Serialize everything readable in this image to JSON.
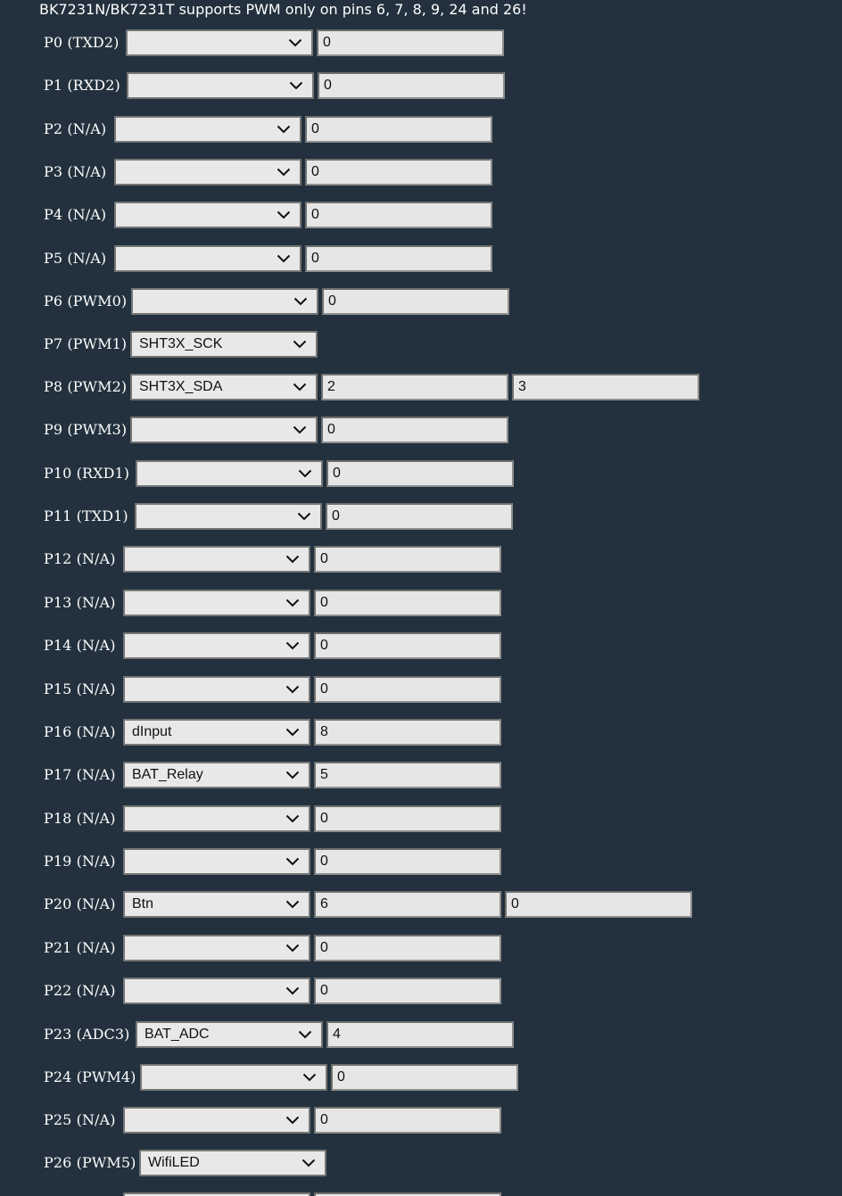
{
  "notice": "BK7231N/BK7231T supports PWM only on pins 6, 7, 8, 9, 24 and 26!",
  "pins": [
    {
      "label": "P0 (TXD2)",
      "role": "",
      "channels": [
        "0"
      ]
    },
    {
      "label": "P1 (RXD2)",
      "role": "",
      "channels": [
        "0"
      ]
    },
    {
      "label": "P2 (N/A)",
      "role": "",
      "channels": [
        "0"
      ]
    },
    {
      "label": "P3 (N/A)",
      "role": "",
      "channels": [
        "0"
      ]
    },
    {
      "label": "P4 (N/A)",
      "role": "",
      "channels": [
        "0"
      ]
    },
    {
      "label": "P5 (N/A)",
      "role": "",
      "channels": [
        "0"
      ]
    },
    {
      "label": "P6 (PWM0)",
      "role": "",
      "channels": [
        "0"
      ]
    },
    {
      "label": "P7 (PWM1)",
      "role": "SHT3X_SCK",
      "channels": []
    },
    {
      "label": "P8 (PWM2)",
      "role": "SHT3X_SDA",
      "channels": [
        "2",
        "3"
      ]
    },
    {
      "label": "P9 (PWM3)",
      "role": "",
      "channels": [
        "0"
      ]
    },
    {
      "label": "P10 (RXD1)",
      "role": "",
      "channels": [
        "0"
      ]
    },
    {
      "label": "P11 (TXD1)",
      "role": "",
      "channels": [
        "0"
      ]
    },
    {
      "label": "P12 (N/A)",
      "role": "",
      "channels": [
        "0"
      ]
    },
    {
      "label": "P13 (N/A)",
      "role": "",
      "channels": [
        "0"
      ]
    },
    {
      "label": "P14 (N/A)",
      "role": "",
      "channels": [
        "0"
      ]
    },
    {
      "label": "P15 (N/A)",
      "role": "",
      "channels": [
        "0"
      ]
    },
    {
      "label": "P16 (N/A)",
      "role": "dInput",
      "channels": [
        "8"
      ]
    },
    {
      "label": "P17 (N/A)",
      "role": "BAT_Relay",
      "channels": [
        "5"
      ]
    },
    {
      "label": "P18 (N/A)",
      "role": "",
      "channels": [
        "0"
      ]
    },
    {
      "label": "P19 (N/A)",
      "role": "",
      "channels": [
        "0"
      ]
    },
    {
      "label": "P20 (N/A)",
      "role": "Btn",
      "channels": [
        "6",
        "0"
      ]
    },
    {
      "label": "P21 (N/A)",
      "role": "",
      "channels": [
        "0"
      ]
    },
    {
      "label": "P22 (N/A)",
      "role": "",
      "channels": [
        "0"
      ]
    },
    {
      "label": "P23 (ADC3)",
      "role": "BAT_ADC",
      "channels": [
        "4"
      ]
    },
    {
      "label": "P24 (PWM4)",
      "role": "",
      "channels": [
        "0"
      ]
    },
    {
      "label": "P25 (N/A)",
      "role": "",
      "channels": [
        "0"
      ]
    },
    {
      "label": "P26 (PWM5)",
      "role": "WifiLED",
      "channels": []
    },
    {
      "label": "",
      "role": "",
      "channels": [
        ""
      ]
    }
  ]
}
